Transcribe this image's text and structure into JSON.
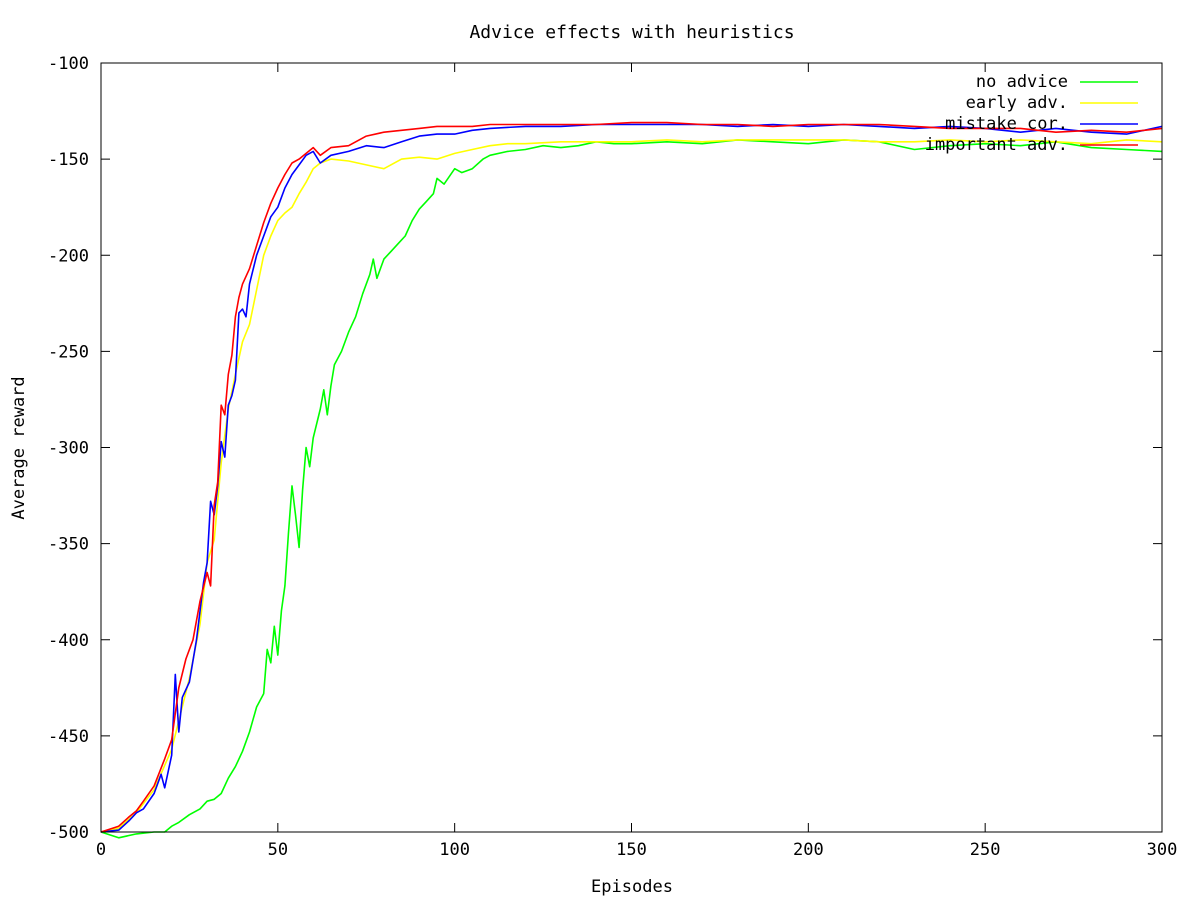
{
  "chart_data": {
    "type": "line",
    "title": "Advice effects with heuristics",
    "xlabel": "Episodes",
    "ylabel": "Average reward",
    "xlim": [
      0,
      300
    ],
    "ylim": [
      -500,
      -100
    ],
    "xticks": [
      0,
      50,
      100,
      150,
      200,
      250,
      300
    ],
    "yticks": [
      -500,
      -450,
      -400,
      -350,
      -300,
      -250,
      -200,
      -150,
      -100
    ],
    "grid": false,
    "legend_position": "top-right",
    "series": [
      {
        "name": "no advice",
        "color": "#00ff00",
        "points": [
          [
            0,
            -500
          ],
          [
            5,
            -503
          ],
          [
            10,
            -501
          ],
          [
            15,
            -500
          ],
          [
            18,
            -500
          ],
          [
            20,
            -497
          ],
          [
            22,
            -495
          ],
          [
            25,
            -491
          ],
          [
            28,
            -488
          ],
          [
            30,
            -484
          ],
          [
            32,
            -483
          ],
          [
            34,
            -480
          ],
          [
            36,
            -472
          ],
          [
            38,
            -466
          ],
          [
            40,
            -458
          ],
          [
            42,
            -448
          ],
          [
            44,
            -435
          ],
          [
            46,
            -428
          ],
          [
            47,
            -405
          ],
          [
            48,
            -412
          ],
          [
            49,
            -393
          ],
          [
            50,
            -408
          ],
          [
            51,
            -385
          ],
          [
            52,
            -372
          ],
          [
            53,
            -345
          ],
          [
            54,
            -320
          ],
          [
            55,
            -335
          ],
          [
            56,
            -352
          ],
          [
            57,
            -322
          ],
          [
            58,
            -300
          ],
          [
            59,
            -310
          ],
          [
            60,
            -295
          ],
          [
            62,
            -280
          ],
          [
            63,
            -270
          ],
          [
            64,
            -283
          ],
          [
            65,
            -268
          ],
          [
            66,
            -257
          ],
          [
            68,
            -250
          ],
          [
            70,
            -240
          ],
          [
            72,
            -232
          ],
          [
            74,
            -220
          ],
          [
            76,
            -210
          ],
          [
            77,
            -202
          ],
          [
            78,
            -212
          ],
          [
            80,
            -202
          ],
          [
            82,
            -198
          ],
          [
            84,
            -194
          ],
          [
            86,
            -190
          ],
          [
            88,
            -182
          ],
          [
            90,
            -176
          ],
          [
            92,
            -172
          ],
          [
            94,
            -168
          ],
          [
            95,
            -160
          ],
          [
            97,
            -163
          ],
          [
            100,
            -155
          ],
          [
            102,
            -157
          ],
          [
            105,
            -155
          ],
          [
            108,
            -150
          ],
          [
            110,
            -148
          ],
          [
            115,
            -146
          ],
          [
            120,
            -145
          ],
          [
            125,
            -143
          ],
          [
            130,
            -144
          ],
          [
            135,
            -143
          ],
          [
            140,
            -141
          ],
          [
            145,
            -142
          ],
          [
            150,
            -142
          ],
          [
            160,
            -141
          ],
          [
            170,
            -142
          ],
          [
            180,
            -140
          ],
          [
            190,
            -141
          ],
          [
            200,
            -142
          ],
          [
            210,
            -140
          ],
          [
            220,
            -141
          ],
          [
            230,
            -145
          ],
          [
            240,
            -143
          ],
          [
            250,
            -142
          ],
          [
            260,
            -143
          ],
          [
            270,
            -141
          ],
          [
            280,
            -144
          ],
          [
            290,
            -145
          ],
          [
            300,
            -146
          ]
        ]
      },
      {
        "name": "early adv.",
        "color": "#ffff00",
        "points": [
          [
            0,
            -500
          ],
          [
            5,
            -498
          ],
          [
            10,
            -490
          ],
          [
            15,
            -478
          ],
          [
            20,
            -457
          ],
          [
            25,
            -420
          ],
          [
            28,
            -392
          ],
          [
            30,
            -360
          ],
          [
            32,
            -348
          ],
          [
            34,
            -308
          ],
          [
            36,
            -280
          ],
          [
            38,
            -262
          ],
          [
            40,
            -245
          ],
          [
            42,
            -236
          ],
          [
            44,
            -218
          ],
          [
            46,
            -200
          ],
          [
            48,
            -190
          ],
          [
            50,
            -182
          ],
          [
            52,
            -178
          ],
          [
            54,
            -175
          ],
          [
            56,
            -168
          ],
          [
            58,
            -162
          ],
          [
            60,
            -155
          ],
          [
            62,
            -152
          ],
          [
            65,
            -150
          ],
          [
            70,
            -151
          ],
          [
            75,
            -153
          ],
          [
            80,
            -155
          ],
          [
            85,
            -150
          ],
          [
            90,
            -149
          ],
          [
            95,
            -150
          ],
          [
            100,
            -147
          ],
          [
            105,
            -145
          ],
          [
            110,
            -143
          ],
          [
            115,
            -142
          ],
          [
            120,
            -142
          ],
          [
            130,
            -141
          ],
          [
            140,
            -141
          ],
          [
            150,
            -141
          ],
          [
            160,
            -140
          ],
          [
            170,
            -141
          ],
          [
            180,
            -140
          ],
          [
            190,
            -140
          ],
          [
            200,
            -140
          ],
          [
            210,
            -140
          ],
          [
            220,
            -141
          ],
          [
            230,
            -141
          ],
          [
            240,
            -140
          ],
          [
            250,
            -141
          ],
          [
            260,
            -140
          ],
          [
            270,
            -141
          ],
          [
            280,
            -142
          ],
          [
            290,
            -140
          ],
          [
            300,
            -141
          ]
        ]
      },
      {
        "name": "mistake cor.",
        "color": "#0000ff",
        "points": [
          [
            0,
            -500
          ],
          [
            5,
            -499
          ],
          [
            8,
            -494
          ],
          [
            10,
            -490
          ],
          [
            12,
            -488
          ],
          [
            15,
            -480
          ],
          [
            17,
            -470
          ],
          [
            18,
            -477
          ],
          [
            20,
            -460
          ],
          [
            21,
            -418
          ],
          [
            22,
            -448
          ],
          [
            23,
            -430
          ],
          [
            25,
            -422
          ],
          [
            27,
            -400
          ],
          [
            29,
            -370
          ],
          [
            30,
            -360
          ],
          [
            31,
            -328
          ],
          [
            32,
            -335
          ],
          [
            33,
            -320
          ],
          [
            34,
            -297
          ],
          [
            35,
            -305
          ],
          [
            36,
            -278
          ],
          [
            37,
            -273
          ],
          [
            38,
            -265
          ],
          [
            39,
            -230
          ],
          [
            40,
            -228
          ],
          [
            41,
            -232
          ],
          [
            42,
            -215
          ],
          [
            44,
            -200
          ],
          [
            46,
            -190
          ],
          [
            48,
            -180
          ],
          [
            50,
            -175
          ],
          [
            52,
            -165
          ],
          [
            54,
            -158
          ],
          [
            56,
            -153
          ],
          [
            58,
            -148
          ],
          [
            60,
            -146
          ],
          [
            62,
            -152
          ],
          [
            65,
            -148
          ],
          [
            70,
            -146
          ],
          [
            75,
            -143
          ],
          [
            80,
            -144
          ],
          [
            85,
            -141
          ],
          [
            90,
            -138
          ],
          [
            95,
            -137
          ],
          [
            100,
            -137
          ],
          [
            105,
            -135
          ],
          [
            110,
            -134
          ],
          [
            120,
            -133
          ],
          [
            130,
            -133
          ],
          [
            140,
            -132
          ],
          [
            150,
            -132
          ],
          [
            160,
            -132
          ],
          [
            170,
            -132
          ],
          [
            180,
            -133
          ],
          [
            190,
            -132
          ],
          [
            200,
            -133
          ],
          [
            210,
            -132
          ],
          [
            220,
            -133
          ],
          [
            230,
            -134
          ],
          [
            240,
            -133
          ],
          [
            250,
            -134
          ],
          [
            260,
            -136
          ],
          [
            270,
            -134
          ],
          [
            280,
            -136
          ],
          [
            290,
            -137
          ],
          [
            300,
            -133
          ]
        ]
      },
      {
        "name": "important adv.",
        "color": "#ff0000",
        "points": [
          [
            0,
            -500
          ],
          [
            5,
            -497
          ],
          [
            8,
            -492
          ],
          [
            10,
            -489
          ],
          [
            12,
            -484
          ],
          [
            15,
            -476
          ],
          [
            18,
            -462
          ],
          [
            20,
            -452
          ],
          [
            22,
            -425
          ],
          [
            24,
            -410
          ],
          [
            26,
            -400
          ],
          [
            28,
            -380
          ],
          [
            30,
            -365
          ],
          [
            31,
            -372
          ],
          [
            32,
            -330
          ],
          [
            33,
            -318
          ],
          [
            34,
            -278
          ],
          [
            35,
            -283
          ],
          [
            36,
            -262
          ],
          [
            37,
            -252
          ],
          [
            38,
            -232
          ],
          [
            39,
            -222
          ],
          [
            40,
            -215
          ],
          [
            42,
            -207
          ],
          [
            44,
            -195
          ],
          [
            46,
            -183
          ],
          [
            48,
            -173
          ],
          [
            50,
            -165
          ],
          [
            52,
            -158
          ],
          [
            54,
            -152
          ],
          [
            56,
            -150
          ],
          [
            58,
            -147
          ],
          [
            60,
            -144
          ],
          [
            62,
            -148
          ],
          [
            65,
            -144
          ],
          [
            70,
            -143
          ],
          [
            75,
            -138
          ],
          [
            80,
            -136
          ],
          [
            85,
            -135
          ],
          [
            90,
            -134
          ],
          [
            95,
            -133
          ],
          [
            100,
            -133
          ],
          [
            105,
            -133
          ],
          [
            110,
            -132
          ],
          [
            120,
            -132
          ],
          [
            130,
            -132
          ],
          [
            140,
            -132
          ],
          [
            150,
            -131
          ],
          [
            160,
            -131
          ],
          [
            170,
            -132
          ],
          [
            180,
            -132
          ],
          [
            190,
            -133
          ],
          [
            200,
            -132
          ],
          [
            210,
            -132
          ],
          [
            220,
            -132
          ],
          [
            230,
            -133
          ],
          [
            240,
            -134
          ],
          [
            250,
            -134
          ],
          [
            260,
            -134
          ],
          [
            270,
            -136
          ],
          [
            280,
            -135
          ],
          [
            290,
            -136
          ],
          [
            300,
            -134
          ]
        ]
      }
    ]
  }
}
